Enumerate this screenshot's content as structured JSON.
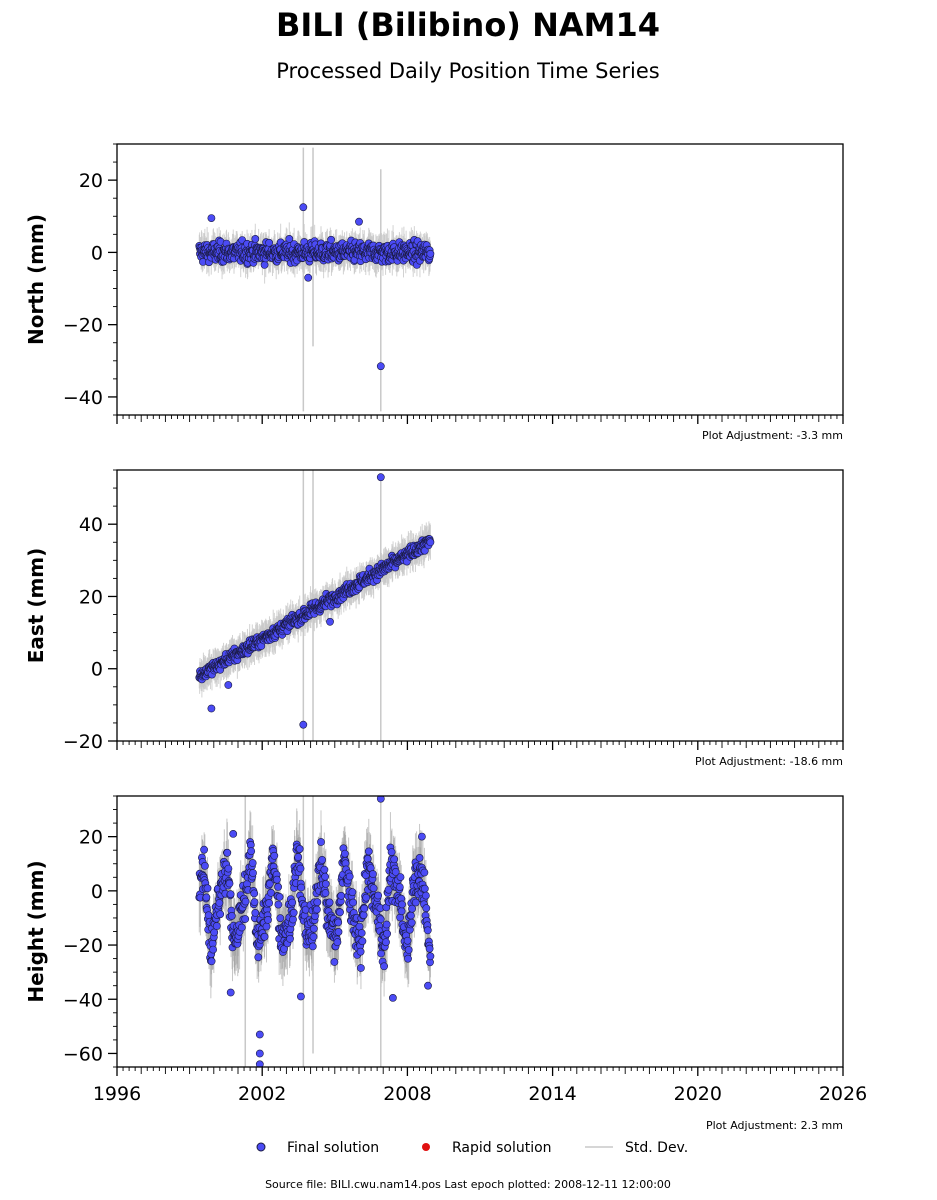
{
  "title": "BILI (Bilibino) NAM14",
  "subtitle": "Processed Daily Position Time Series",
  "footer": "Source file: BILI.cwu.nam14.pos  Last epoch plotted: 2008-12-11 12:00:00",
  "legend": {
    "final": "Final solution",
    "rapid": "Rapid solution",
    "stddev": "Std. Dev."
  },
  "colors": {
    "final": "#4b4bf5",
    "rapid": "#e01010",
    "stddev": "#c8c8c8",
    "marker_edge": "#1a1a40"
  },
  "chart_data": [
    {
      "type": "scatter",
      "ylabel": "North (mm)",
      "adjustment": "Plot Adjustment: -3.3 mm",
      "xlim": [
        1996,
        2026
      ],
      "ylim": [
        -45,
        30
      ],
      "yticks": [
        -40,
        -20,
        0,
        20
      ],
      "xticks": [
        1996,
        2002,
        2008,
        2014,
        2020,
        2026
      ],
      "data_range": [
        1999.4,
        2008.95
      ],
      "trend": {
        "start": 0,
        "slope": 0
      },
      "scatter": 2.3,
      "outliers": [
        [
          2003.7,
          12.5
        ],
        [
          2006.9,
          -31.5
        ],
        [
          1999.9,
          9.5
        ],
        [
          2006.0,
          8.5
        ],
        [
          2003.9,
          -7
        ]
      ],
      "spikes": [
        [
          2003.7,
          -44,
          29
        ],
        [
          2004.1,
          -26,
          29
        ],
        [
          2006.9,
          -44,
          23
        ]
      ]
    },
    {
      "type": "scatter",
      "ylabel": "East (mm)",
      "adjustment": "Plot Adjustment: -18.6 mm",
      "xlim": [
        1996,
        2026
      ],
      "ylim": [
        -20,
        55
      ],
      "yticks": [
        -20,
        0,
        20,
        40
      ],
      "xticks": [
        1996,
        2002,
        2008,
        2014,
        2020,
        2026
      ],
      "data_range": [
        1999.4,
        2008.95
      ],
      "trend": {
        "start": -2,
        "slope": 3.9
      },
      "scatter": 1.5,
      "outliers": [
        [
          2006.9,
          53
        ],
        [
          2003.7,
          -15.5
        ],
        [
          1999.9,
          -11
        ],
        [
          2004.8,
          13
        ],
        [
          2000.6,
          -4.5
        ]
      ],
      "spikes": [
        [
          2003.7,
          -20,
          55
        ],
        [
          2004.1,
          -20,
          55
        ],
        [
          2006.9,
          -20,
          52
        ]
      ]
    },
    {
      "type": "scatter",
      "ylabel": "Height (mm)",
      "adjustment": "Plot Adjustment: 2.3 mm",
      "xlim": [
        1996,
        2026
      ],
      "ylim": [
        -65,
        35
      ],
      "yticks": [
        -60,
        -40,
        -20,
        0,
        20
      ],
      "xticks": [
        1996,
        2002,
        2008,
        2014,
        2020,
        2026
      ],
      "data_range": [
        1999.4,
        2008.95
      ],
      "trend": {
        "start": -5,
        "slope": 0
      },
      "scatter": 7,
      "seasonal": 13,
      "outliers": [
        [
          2006.9,
          34
        ],
        [
          2001.9,
          -64
        ],
        [
          2001.9,
          -60
        ],
        [
          2001.9,
          -53
        ],
        [
          2000.8,
          21
        ],
        [
          2007.4,
          -39.5
        ],
        [
          2003.6,
          -39
        ],
        [
          2000.7,
          -37.5
        ],
        [
          2008.6,
          20
        ],
        [
          2008.85,
          -35
        ]
      ],
      "spikes": [
        [
          2001.3,
          -65,
          35
        ],
        [
          2003.7,
          -65,
          35
        ],
        [
          2004.1,
          -60,
          35
        ],
        [
          2006.9,
          -65,
          35
        ]
      ]
    }
  ]
}
